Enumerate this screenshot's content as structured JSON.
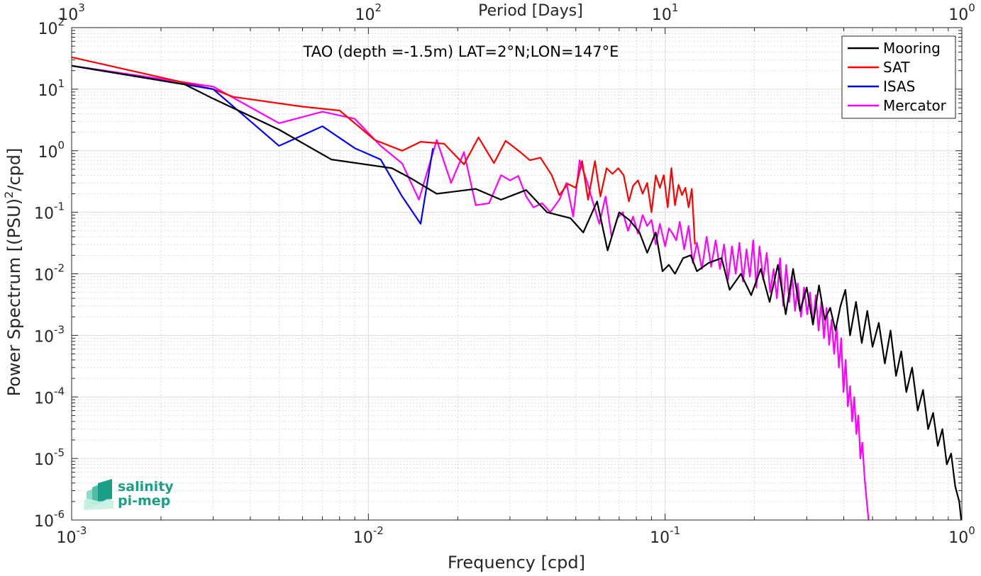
{
  "chart_data": {
    "type": "line",
    "title": "TAO (depth =-1.5m) LAT=2°N;LON=147°E",
    "xlabel": "Frequency [cpd]",
    "ylabel_parts": [
      "Power Spectrum [(PSU)",
      "2",
      "/cpd]"
    ],
    "top_xlabel": "Period [Days]",
    "xscale": "log",
    "yscale": "log",
    "xlim": [
      0.001,
      1
    ],
    "ylim": [
      1e-06,
      100
    ],
    "grid": true,
    "legend_position": "top-right",
    "x_ticks": [
      {
        "value": 0.001,
        "base": "10",
        "exp": "-3"
      },
      {
        "value": 0.01,
        "base": "10",
        "exp": "-2"
      },
      {
        "value": 0.1,
        "base": "10",
        "exp": "-1"
      },
      {
        "value": 1,
        "base": "10",
        "exp": "0"
      }
    ],
    "top_x_ticks": [
      {
        "freq": 0.001,
        "base": "10",
        "exp": "3"
      },
      {
        "freq": 0.01,
        "base": "10",
        "exp": "2"
      },
      {
        "freq": 0.1,
        "base": "10",
        "exp": "1"
      },
      {
        "freq": 1,
        "base": "10",
        "exp": "0"
      }
    ],
    "y_ticks": [
      {
        "value": 100,
        "base": "10",
        "exp": "2"
      },
      {
        "value": 10,
        "base": "10",
        "exp": "1"
      },
      {
        "value": 1,
        "base": "10",
        "exp": "0"
      },
      {
        "value": 0.1,
        "base": "10",
        "exp": "-1"
      },
      {
        "value": 0.01,
        "base": "10",
        "exp": "-2"
      },
      {
        "value": 0.001,
        "base": "10",
        "exp": "-3"
      },
      {
        "value": 0.0001,
        "base": "10",
        "exp": "-4"
      },
      {
        "value": 1e-05,
        "base": "10",
        "exp": "-5"
      },
      {
        "value": 1e-06,
        "base": "10",
        "exp": "-6"
      }
    ],
    "series": [
      {
        "name": "Mooring",
        "color": "#000000",
        "points": [
          [
            0.001,
            24
          ],
          [
            0.0024,
            12
          ],
          [
            0.003,
            7
          ],
          [
            0.005,
            2.2
          ],
          [
            0.0075,
            0.72
          ],
          [
            0.012,
            0.52
          ],
          [
            0.014,
            0.35
          ],
          [
            0.017,
            0.2
          ],
          [
            0.023,
            0.24
          ],
          [
            0.028,
            0.16
          ],
          [
            0.034,
            0.23
          ],
          [
            0.04,
            0.1
          ],
          [
            0.048,
            0.08
          ],
          [
            0.053,
            0.047
          ],
          [
            0.059,
            0.15
          ],
          [
            0.064,
            0.024
          ],
          [
            0.07,
            0.1
          ],
          [
            0.076,
            0.074
          ],
          [
            0.082,
            0.047
          ],
          [
            0.087,
            0.022
          ],
          [
            0.093,
            0.047
          ],
          [
            0.098,
            0.011
          ],
          [
            0.103,
            0.014
          ],
          [
            0.108,
            0.01
          ],
          [
            0.115,
            0.018
          ],
          [
            0.122,
            0.02
          ],
          [
            0.128,
            0.011
          ],
          [
            0.14,
            0.015
          ],
          [
            0.155,
            0.018
          ],
          [
            0.165,
            0.0055
          ],
          [
            0.18,
            0.01
          ],
          [
            0.195,
            0.0045
          ],
          [
            0.21,
            0.012
          ],
          [
            0.225,
            0.0035
          ],
          [
            0.24,
            0.014
          ],
          [
            0.255,
            0.0022
          ],
          [
            0.27,
            0.012
          ],
          [
            0.285,
            0.0025
          ],
          [
            0.3,
            0.006
          ],
          [
            0.315,
            0.0015
          ],
          [
            0.33,
            0.0065
          ],
          [
            0.345,
            0.0018
          ],
          [
            0.36,
            0.0028
          ],
          [
            0.375,
            0.0012
          ],
          [
            0.39,
            0.003
          ],
          [
            0.405,
            0.0055
          ],
          [
            0.42,
            0.001
          ],
          [
            0.44,
            0.0035
          ],
          [
            0.46,
            0.00075
          ],
          [
            0.48,
            0.0025
          ],
          [
            0.5,
            0.00065
          ],
          [
            0.525,
            0.0016
          ],
          [
            0.55,
            0.00035
          ],
          [
            0.575,
            0.0012
          ],
          [
            0.6,
            0.00022
          ],
          [
            0.625,
            0.00055
          ],
          [
            0.65,
            0.00012
          ],
          [
            0.68,
            0.0003
          ],
          [
            0.71,
            6e-05
          ],
          [
            0.74,
            0.00013
          ],
          [
            0.77,
            3e-05
          ],
          [
            0.8,
            5.5e-05
          ],
          [
            0.83,
            1.6e-05
          ],
          [
            0.86,
            3e-05
          ],
          [
            0.89,
            8e-06
          ],
          [
            0.92,
            1.2e-05
          ],
          [
            0.95,
            3.5e-06
          ],
          [
            0.98,
            2e-06
          ],
          [
            1.0,
            8e-07
          ]
        ]
      },
      {
        "name": "SAT",
        "color": "#ff0000",
        "points": [
          [
            0.001,
            33
          ],
          [
            0.003,
            10
          ],
          [
            0.0035,
            7.5
          ],
          [
            0.006,
            5.2
          ],
          [
            0.008,
            4.5
          ],
          [
            0.0105,
            1.5
          ],
          [
            0.013,
            1.0
          ],
          [
            0.015,
            1.4
          ],
          [
            0.018,
            1.3
          ],
          [
            0.021,
            0.6
          ],
          [
            0.0235,
            1.65
          ],
          [
            0.0265,
            0.63
          ],
          [
            0.029,
            1.45
          ],
          [
            0.0325,
            0.95
          ],
          [
            0.035,
            0.7
          ],
          [
            0.038,
            0.77
          ],
          [
            0.0415,
            0.4
          ],
          [
            0.044,
            0.19
          ],
          [
            0.047,
            0.29
          ],
          [
            0.05,
            0.25
          ],
          [
            0.0525,
            0.68
          ],
          [
            0.055,
            0.16
          ],
          [
            0.058,
            0.68
          ],
          [
            0.0605,
            0.18
          ],
          [
            0.0635,
            0.52
          ],
          [
            0.0665,
            0.42
          ],
          [
            0.0695,
            0.52
          ],
          [
            0.0725,
            0.4
          ],
          [
            0.0755,
            0.15
          ],
          [
            0.078,
            0.27
          ],
          [
            0.081,
            0.33
          ],
          [
            0.084,
            0.2
          ],
          [
            0.087,
            0.3
          ],
          [
            0.09,
            0.1
          ],
          [
            0.093,
            0.4
          ],
          [
            0.096,
            0.25
          ],
          [
            0.099,
            0.4
          ],
          [
            0.102,
            0.12
          ],
          [
            0.105,
            0.52
          ],
          [
            0.108,
            0.13
          ],
          [
            0.111,
            0.28
          ],
          [
            0.114,
            0.19
          ],
          [
            0.117,
            0.25
          ],
          [
            0.12,
            0.12
          ],
          [
            0.123,
            0.24
          ],
          [
            0.126,
            0.03
          ]
        ]
      },
      {
        "name": "ISAS",
        "color": "#0000ff",
        "points": [
          [
            0.001,
            24
          ],
          [
            0.003,
            10
          ],
          [
            0.005,
            1.2
          ],
          [
            0.007,
            2.5
          ],
          [
            0.009,
            1.1
          ],
          [
            0.011,
            0.72
          ],
          [
            0.013,
            0.18
          ],
          [
            0.015,
            0.065
          ],
          [
            0.0165,
            1.1
          ]
        ]
      },
      {
        "name": "Mercator",
        "color": "#ff00ff",
        "points": [
          [
            0.001,
            24
          ],
          [
            0.003,
            11
          ],
          [
            0.005,
            2.8
          ],
          [
            0.007,
            4.3
          ],
          [
            0.009,
            3.3
          ],
          [
            0.011,
            1.2
          ],
          [
            0.013,
            0.62
          ],
          [
            0.0148,
            0.16
          ],
          [
            0.017,
            1.5
          ],
          [
            0.019,
            0.3
          ],
          [
            0.021,
            0.95
          ],
          [
            0.023,
            0.13
          ],
          [
            0.0255,
            0.14
          ],
          [
            0.028,
            0.4
          ],
          [
            0.03,
            0.33
          ],
          [
            0.032,
            0.39
          ],
          [
            0.034,
            0.18
          ],
          [
            0.036,
            0.12
          ],
          [
            0.0385,
            0.14
          ],
          [
            0.041,
            0.1
          ],
          [
            0.044,
            0.16
          ],
          [
            0.0465,
            0.3
          ],
          [
            0.049,
            0.085
          ],
          [
            0.0515,
            0.7
          ],
          [
            0.0545,
            0.32
          ],
          [
            0.057,
            0.15
          ],
          [
            0.06,
            0.065
          ],
          [
            0.063,
            0.18
          ],
          [
            0.066,
            0.04
          ],
          [
            0.069,
            0.08
          ],
          [
            0.072,
            0.1
          ],
          [
            0.075,
            0.05
          ],
          [
            0.078,
            0.085
          ],
          [
            0.081,
            0.045
          ],
          [
            0.084,
            0.09
          ],
          [
            0.087,
            0.06
          ],
          [
            0.09,
            0.075
          ],
          [
            0.093,
            0.03
          ],
          [
            0.096,
            0.065
          ],
          [
            0.1,
            0.028
          ],
          [
            0.103,
            0.055
          ],
          [
            0.106,
            0.045
          ],
          [
            0.109,
            0.035
          ],
          [
            0.112,
            0.07
          ],
          [
            0.116,
            0.025
          ],
          [
            0.12,
            0.06
          ],
          [
            0.124,
            0.015
          ],
          [
            0.128,
            0.032
          ],
          [
            0.133,
            0.012
          ],
          [
            0.138,
            0.04
          ],
          [
            0.143,
            0.013
          ],
          [
            0.148,
            0.035
          ],
          [
            0.153,
            0.012
          ],
          [
            0.158,
            0.03
          ],
          [
            0.163,
            0.008
          ],
          [
            0.168,
            0.028
          ],
          [
            0.173,
            0.01
          ],
          [
            0.178,
            0.032
          ],
          [
            0.183,
            0.0075
          ],
          [
            0.188,
            0.025
          ],
          [
            0.193,
            0.009
          ],
          [
            0.198,
            0.035
          ],
          [
            0.203,
            0.006
          ],
          [
            0.208,
            0.028
          ],
          [
            0.214,
            0.008
          ],
          [
            0.22,
            0.022
          ],
          [
            0.226,
            0.005
          ],
          [
            0.232,
            0.012
          ],
          [
            0.238,
            0.004
          ],
          [
            0.244,
            0.018
          ],
          [
            0.25,
            0.003
          ],
          [
            0.256,
            0.014
          ],
          [
            0.262,
            0.0035
          ],
          [
            0.268,
            0.009
          ],
          [
            0.274,
            0.0025
          ],
          [
            0.28,
            0.007
          ],
          [
            0.287,
            0.002
          ],
          [
            0.294,
            0.006
          ],
          [
            0.301,
            0.0022
          ],
          [
            0.308,
            0.005
          ],
          [
            0.315,
            0.0015
          ],
          [
            0.322,
            0.0045
          ],
          [
            0.329,
            0.0012
          ],
          [
            0.336,
            0.0035
          ],
          [
            0.343,
            0.0009
          ],
          [
            0.35,
            0.0028
          ],
          [
            0.357,
            0.0007
          ],
          [
            0.364,
            0.0018
          ],
          [
            0.371,
            0.0005
          ],
          [
            0.378,
            0.0014
          ],
          [
            0.385,
            0.0003
          ],
          [
            0.392,
            0.0009
          ],
          [
            0.399,
            0.00012
          ],
          [
            0.406,
            0.0004
          ],
          [
            0.413,
            7e-05
          ],
          [
            0.42,
            0.00015
          ],
          [
            0.427,
            4e-05
          ],
          [
            0.434,
            0.0001
          ],
          [
            0.441,
            2.5e-05
          ],
          [
            0.448,
            5e-05
          ],
          [
            0.455,
            1e-05
          ],
          [
            0.462,
            1.8e-05
          ],
          [
            0.47,
            5e-06
          ],
          [
            0.478,
            2e-06
          ],
          [
            0.485,
            1e-06
          ]
        ]
      }
    ]
  },
  "logo": {
    "line1": "salinity",
    "line2": "pi-mep"
  }
}
